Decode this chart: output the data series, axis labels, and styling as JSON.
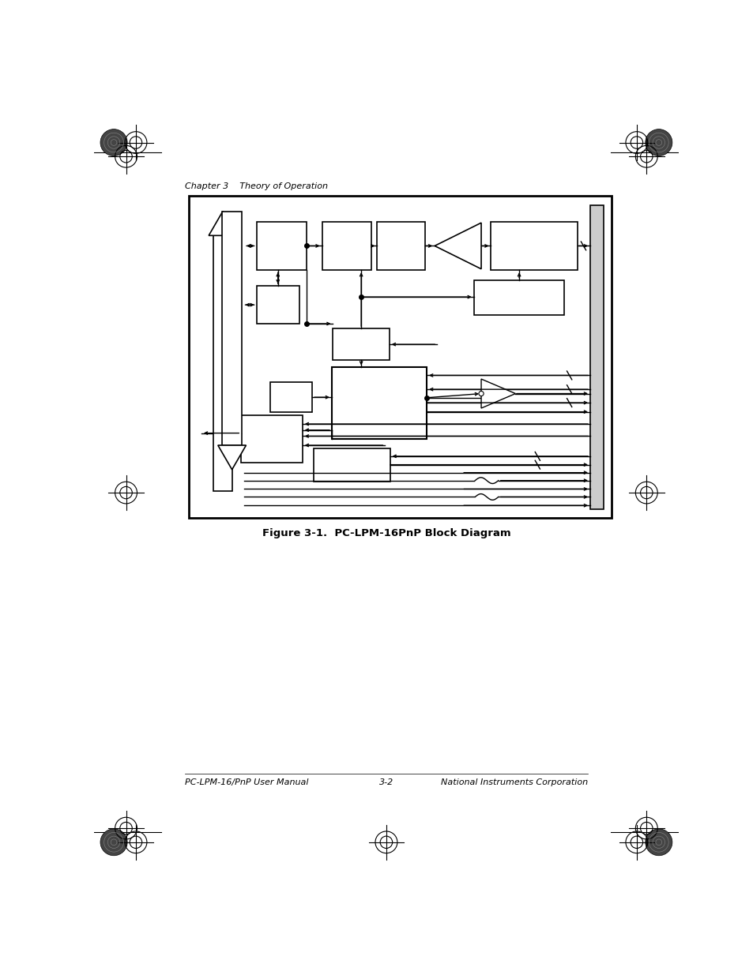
{
  "page_bg": "#ffffff",
  "chapter_text": "Chapter 3    Theory of Operation",
  "figure_caption": "Figure 3-1.  PC-LPM-16PnP Block Diagram",
  "footer_left": "PC-LPM-16/PnP User Manual",
  "footer_center": "3-2",
  "footer_right": "National Instruments Corporation"
}
